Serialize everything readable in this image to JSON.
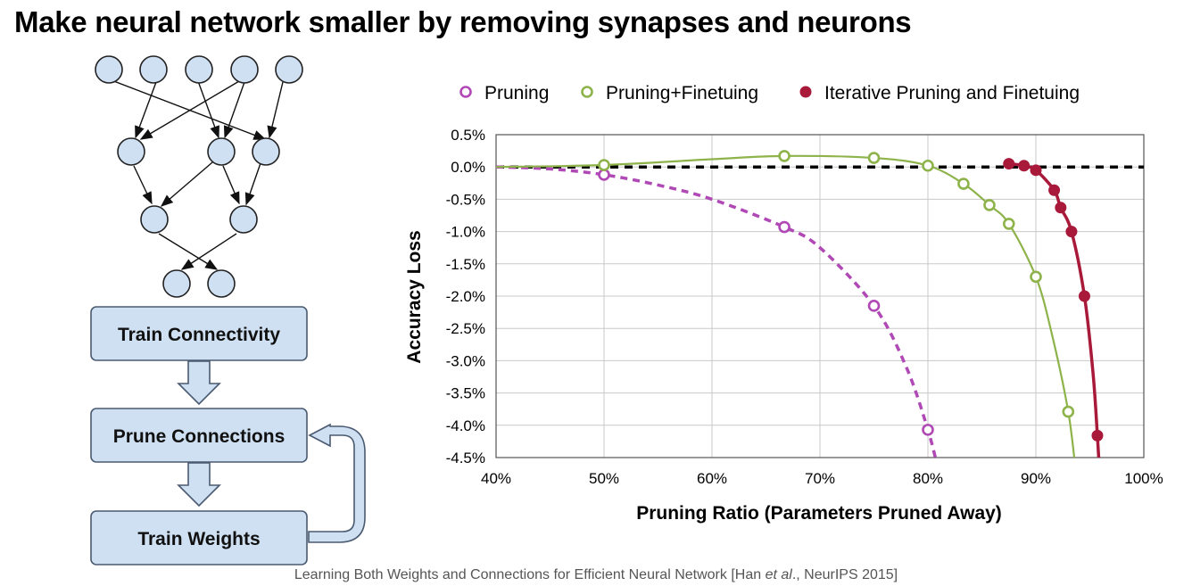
{
  "title": "Make neural network smaller by removing synapses and neurons",
  "caption": {
    "prefix": "Learning Both Weights and Connections for Efficient Neural Network [Han ",
    "italic": "et al",
    "suffix": "., NeurIPS 2015]"
  },
  "diagram": {
    "boxes": [
      "Train Connectivity",
      "Prune Connections",
      "Train Weights"
    ]
  },
  "chart_data": {
    "type": "line",
    "xlabel": "Pruning Ratio (Parameters Pruned Away)",
    "ylabel": "Accuracy Loss",
    "xlim": [
      40,
      100
    ],
    "ylim": [
      -4.5,
      0.5
    ],
    "xticks": [
      "40%",
      "50%",
      "60%",
      "70%",
      "80%",
      "90%",
      "100%"
    ],
    "yticks": [
      "0.5%",
      "0.0%",
      "-0.5%",
      "-1.0%",
      "-1.5%",
      "-2.0%",
      "-2.5%",
      "-3.0%",
      "-3.5%",
      "-4.0%",
      "-4.5%"
    ],
    "grid": true,
    "legend_position": "top",
    "baseline": 0.0,
    "series": [
      {
        "name": "Pruning",
        "color": "#b048b5",
        "style": "dashed",
        "marker": "open-circle",
        "curve": [
          [
            40,
            0.0
          ],
          [
            45,
            -0.03
          ],
          [
            50,
            -0.12
          ],
          [
            55,
            -0.28
          ],
          [
            60,
            -0.5
          ],
          [
            66.7,
            -0.93
          ],
          [
            70,
            -1.25
          ],
          [
            75,
            -2.15
          ],
          [
            78,
            -3.1
          ],
          [
            80,
            -4.07
          ],
          [
            81,
            -4.72
          ]
        ],
        "points": [
          [
            50,
            -0.12
          ],
          [
            66.7,
            -0.93
          ],
          [
            75,
            -2.15
          ],
          [
            80,
            -4.07
          ]
        ]
      },
      {
        "name": "Pruning+Finetuing",
        "color": "#8db34a",
        "style": "solid",
        "marker": "open-circle",
        "curve": [
          [
            40,
            0.0
          ],
          [
            50,
            0.03
          ],
          [
            60,
            0.12
          ],
          [
            66.7,
            0.17
          ],
          [
            75,
            0.14
          ],
          [
            80,
            0.02
          ],
          [
            83.3,
            -0.26
          ],
          [
            85.7,
            -0.59
          ],
          [
            87.5,
            -0.88
          ],
          [
            90,
            -1.7
          ],
          [
            91.5,
            -2.6
          ],
          [
            93,
            -3.79
          ],
          [
            93.7,
            -4.72
          ]
        ],
        "points": [
          [
            50,
            0.03
          ],
          [
            66.7,
            0.17
          ],
          [
            75,
            0.14
          ],
          [
            80,
            0.02
          ],
          [
            83.3,
            -0.26
          ],
          [
            85.7,
            -0.59
          ],
          [
            87.5,
            -0.88
          ],
          [
            90,
            -1.7
          ],
          [
            93,
            -3.79
          ]
        ]
      },
      {
        "name": "Iterative Pruning and Finetuing",
        "color": "#a8193a",
        "style": "solid",
        "marker": "filled-circle",
        "curve": [
          [
            87.5,
            0.05
          ],
          [
            88.9,
            0.02
          ],
          [
            90,
            -0.05
          ],
          [
            91.7,
            -0.36
          ],
          [
            92.3,
            -0.63
          ],
          [
            93.3,
            -1.0
          ],
          [
            94.5,
            -2.0
          ],
          [
            95.3,
            -3.2
          ],
          [
            95.7,
            -4.16
          ],
          [
            95.9,
            -4.72
          ]
        ],
        "points": [
          [
            87.5,
            0.05
          ],
          [
            88.9,
            0.02
          ],
          [
            90,
            -0.05
          ],
          [
            91.7,
            -0.36
          ],
          [
            92.3,
            -0.63
          ],
          [
            93.3,
            -1.0
          ],
          [
            94.5,
            -2.0
          ],
          [
            95.7,
            -4.16
          ]
        ]
      }
    ]
  }
}
